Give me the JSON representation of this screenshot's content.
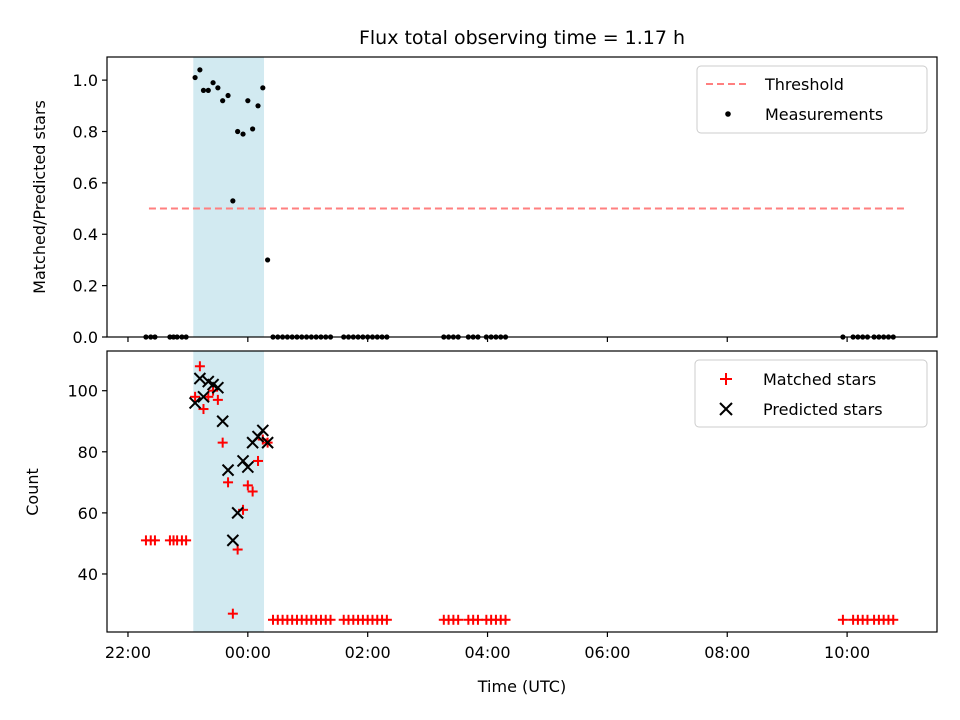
{
  "title": "Flux total observing time = 1.17 h",
  "colors": {
    "threshold": "#ff7f7f",
    "measurement": "#000000",
    "matched": "#ff0000",
    "predicted": "#000000",
    "highlight": "#add8e6"
  },
  "chart_data": [
    {
      "type": "scatter",
      "xlabel": "",
      "ylabel": "Matched/Predicted stars",
      "x_unit": "hours (UTC, relative to 00:00)",
      "xlim": [
        -2.35,
        11.5
      ],
      "ylim": [
        0,
        1.09
      ],
      "yticks": [
        "0.0",
        "0.2",
        "0.4",
        "0.6",
        "0.8",
        "1.0"
      ],
      "ytick_values": [
        0,
        0.2,
        0.4,
        0.6,
        0.8,
        1.0
      ],
      "highlight_span": [
        -0.91,
        0.27
      ],
      "legend": {
        "placement": "top-right",
        "entries": [
          "Threshold",
          "Measurements"
        ]
      },
      "threshold": {
        "name": "Threshold",
        "y": 0.5,
        "x": [
          -1.65,
          10.95
        ]
      },
      "series": [
        {
          "name": "Measurements",
          "points": [
            [
              -1.7,
              0
            ],
            [
              -1.62,
              0
            ],
            [
              -1.55,
              0
            ],
            [
              -1.3,
              0
            ],
            [
              -1.24,
              0
            ],
            [
              -1.18,
              0
            ],
            [
              -1.1,
              0
            ],
            [
              -1.03,
              0
            ],
            [
              -0.88,
              1.01
            ],
            [
              -0.8,
              1.04
            ],
            [
              -0.74,
              0.96
            ],
            [
              -0.66,
              0.96
            ],
            [
              -0.58,
              0.99
            ],
            [
              -0.5,
              0.97
            ],
            [
              -0.42,
              0.92
            ],
            [
              -0.33,
              0.94
            ],
            [
              -0.25,
              0.53
            ],
            [
              -0.17,
              0.8
            ],
            [
              -0.08,
              0.79
            ],
            [
              0.0,
              0.92
            ],
            [
              0.08,
              0.81
            ],
            [
              0.17,
              0.9
            ],
            [
              0.25,
              0.97
            ],
            [
              0.33,
              0.3
            ],
            [
              0.42,
              0
            ],
            [
              0.5,
              0
            ],
            [
              0.58,
              0
            ],
            [
              0.66,
              0
            ],
            [
              0.74,
              0
            ],
            [
              0.82,
              0
            ],
            [
              0.9,
              0
            ],
            [
              0.98,
              0
            ],
            [
              1.06,
              0
            ],
            [
              1.14,
              0
            ],
            [
              1.22,
              0
            ],
            [
              1.3,
              0
            ],
            [
              1.38,
              0
            ],
            [
              1.6,
              0
            ],
            [
              1.68,
              0
            ],
            [
              1.76,
              0
            ],
            [
              1.84,
              0
            ],
            [
              1.92,
              0
            ],
            [
              2.0,
              0
            ],
            [
              2.08,
              0
            ],
            [
              2.16,
              0
            ],
            [
              2.24,
              0
            ],
            [
              2.32,
              0
            ],
            [
              3.27,
              0
            ],
            [
              3.35,
              0
            ],
            [
              3.43,
              0
            ],
            [
              3.51,
              0
            ],
            [
              3.68,
              0
            ],
            [
              3.76,
              0
            ],
            [
              3.84,
              0
            ],
            [
              3.98,
              0
            ],
            [
              4.06,
              0
            ],
            [
              4.14,
              0
            ],
            [
              4.22,
              0
            ],
            [
              4.3,
              0
            ],
            [
              9.93,
              0
            ],
            [
              10.1,
              0
            ],
            [
              10.18,
              0
            ],
            [
              10.26,
              0
            ],
            [
              10.34,
              0
            ],
            [
              10.45,
              0
            ],
            [
              10.53,
              0
            ],
            [
              10.61,
              0
            ],
            [
              10.69,
              0
            ],
            [
              10.77,
              0
            ]
          ]
        }
      ]
    },
    {
      "type": "scatter",
      "xlabel": "Time (UTC)",
      "ylabel": "Count",
      "x_unit": "hours (UTC, relative to 00:00)",
      "xlim": [
        -2.35,
        11.5
      ],
      "ylim": [
        21,
        113
      ],
      "yticks": [
        "40",
        "60",
        "80",
        "100"
      ],
      "ytick_values": [
        40,
        60,
        80,
        100
      ],
      "xticks": [
        "22:00",
        "00:00",
        "02:00",
        "04:00",
        "06:00",
        "08:00",
        "10:00"
      ],
      "xtick_values": [
        -2,
        0,
        2,
        4,
        6,
        8,
        10
      ],
      "highlight_span": [
        -0.91,
        0.27
      ],
      "legend": {
        "placement": "top-right",
        "entries": [
          "Matched stars",
          "Predicted stars"
        ]
      },
      "series": [
        {
          "name": "Matched stars",
          "marker": "plus",
          "points": [
            [
              -1.7,
              51
            ],
            [
              -1.62,
              51
            ],
            [
              -1.55,
              51
            ],
            [
              -1.3,
              51
            ],
            [
              -1.24,
              51
            ],
            [
              -1.18,
              51
            ],
            [
              -1.1,
              51
            ],
            [
              -1.03,
              51
            ],
            [
              -0.88,
              98
            ],
            [
              -0.8,
              108
            ],
            [
              -0.74,
              94
            ],
            [
              -0.66,
              98
            ],
            [
              -0.58,
              100
            ],
            [
              -0.5,
              97
            ],
            [
              -0.42,
              83
            ],
            [
              -0.33,
              70
            ],
            [
              -0.25,
              27
            ],
            [
              -0.17,
              48
            ],
            [
              -0.08,
              61
            ],
            [
              0.0,
              69
            ],
            [
              0.08,
              67
            ],
            [
              0.17,
              77
            ],
            [
              0.25,
              84
            ],
            [
              0.33,
              83
            ],
            [
              0.42,
              25
            ],
            [
              0.5,
              25
            ],
            [
              0.58,
              25
            ],
            [
              0.66,
              25
            ],
            [
              0.74,
              25
            ],
            [
              0.82,
              25
            ],
            [
              0.9,
              25
            ],
            [
              0.98,
              25
            ],
            [
              1.06,
              25
            ],
            [
              1.14,
              25
            ],
            [
              1.22,
              25
            ],
            [
              1.3,
              25
            ],
            [
              1.38,
              25
            ],
            [
              1.6,
              25
            ],
            [
              1.68,
              25
            ],
            [
              1.76,
              25
            ],
            [
              1.84,
              25
            ],
            [
              1.92,
              25
            ],
            [
              2.0,
              25
            ],
            [
              2.08,
              25
            ],
            [
              2.16,
              25
            ],
            [
              2.24,
              25
            ],
            [
              2.32,
              25
            ],
            [
              3.27,
              25
            ],
            [
              3.35,
              25
            ],
            [
              3.43,
              25
            ],
            [
              3.51,
              25
            ],
            [
              3.68,
              25
            ],
            [
              3.76,
              25
            ],
            [
              3.84,
              25
            ],
            [
              3.98,
              25
            ],
            [
              4.06,
              25
            ],
            [
              4.14,
              25
            ],
            [
              4.22,
              25
            ],
            [
              4.3,
              25
            ],
            [
              9.93,
              25
            ],
            [
              10.1,
              25
            ],
            [
              10.18,
              25
            ],
            [
              10.26,
              25
            ],
            [
              10.34,
              25
            ],
            [
              10.45,
              25
            ],
            [
              10.53,
              25
            ],
            [
              10.61,
              25
            ],
            [
              10.69,
              25
            ],
            [
              10.77,
              25
            ]
          ]
        },
        {
          "name": "Predicted stars",
          "marker": "x",
          "points": [
            [
              -0.88,
              96
            ],
            [
              -0.8,
              104
            ],
            [
              -0.74,
              98
            ],
            [
              -0.66,
              103
            ],
            [
              -0.58,
              102
            ],
            [
              -0.5,
              101
            ],
            [
              -0.42,
              90
            ],
            [
              -0.33,
              74
            ],
            [
              -0.25,
              51
            ],
            [
              -0.17,
              60
            ],
            [
              -0.08,
              77
            ],
            [
              0.0,
              75
            ],
            [
              0.08,
              83
            ],
            [
              0.17,
              85
            ],
            [
              0.25,
              87
            ],
            [
              0.33,
              83
            ]
          ]
        }
      ]
    }
  ]
}
